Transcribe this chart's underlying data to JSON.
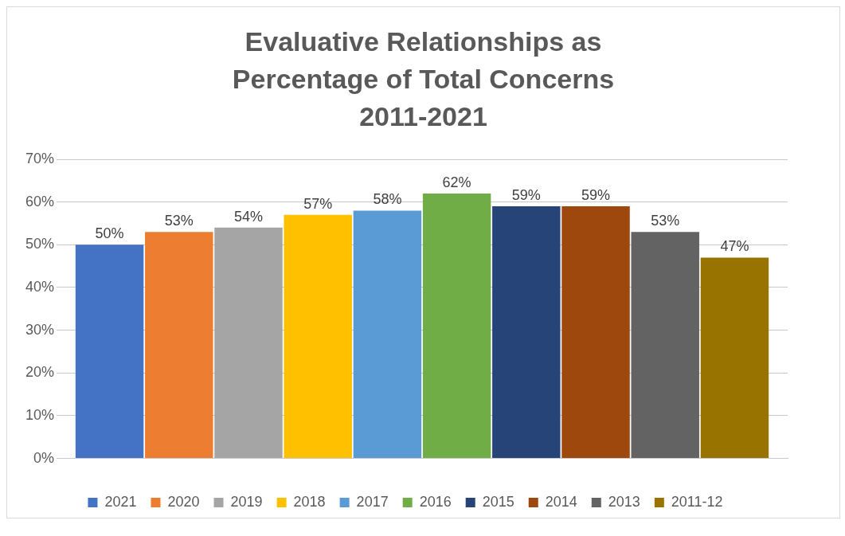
{
  "chart_data": {
    "type": "bar",
    "title": "Evaluative Relationships as Percentage of Total Concerns 2011-2021",
    "categories": [
      null
    ],
    "series": [
      {
        "name": "2021",
        "color": "#4472c4",
        "values": [
          50
        ],
        "value_labels": [
          "50%"
        ]
      },
      {
        "name": "2020",
        "color": "#ed7d31",
        "values": [
          53
        ],
        "value_labels": [
          "53%"
        ]
      },
      {
        "name": "2019",
        "color": "#a5a5a5",
        "values": [
          54
        ],
        "value_labels": [
          "54%"
        ]
      },
      {
        "name": "2018",
        "color": "#ffc000",
        "values": [
          57
        ],
        "value_labels": [
          "57%"
        ]
      },
      {
        "name": "2017",
        "color": "#5b9bd5",
        "values": [
          58
        ],
        "value_labels": [
          "58%"
        ]
      },
      {
        "name": "2016",
        "color": "#70ad47",
        "values": [
          62
        ],
        "value_labels": [
          "62%"
        ]
      },
      {
        "name": "2015",
        "color": "#264478",
        "values": [
          59
        ],
        "value_labels": [
          "59%"
        ]
      },
      {
        "name": "2014",
        "color": "#9e480e",
        "values": [
          59
        ],
        "value_labels": [
          "59%"
        ]
      },
      {
        "name": "2013",
        "color": "#636363",
        "values": [
          53
        ],
        "value_labels": [
          "53%"
        ]
      },
      {
        "name": "2011-12",
        "color": "#997300",
        "values": [
          47
        ],
        "value_labels": [
          "47%"
        ]
      }
    ],
    "ylim": [
      0,
      70
    ],
    "yticks": [
      {
        "value": 0,
        "label": "0%"
      },
      {
        "value": 10,
        "label": "10%"
      },
      {
        "value": 20,
        "label": "20%"
      },
      {
        "value": 30,
        "label": "30%"
      },
      {
        "value": 40,
        "label": "40%"
      },
      {
        "value": 50,
        "label": "50%"
      },
      {
        "value": 60,
        "label": "60%"
      },
      {
        "value": 70,
        "label": "70%"
      }
    ],
    "grid": "y",
    "legend": "bottom"
  }
}
